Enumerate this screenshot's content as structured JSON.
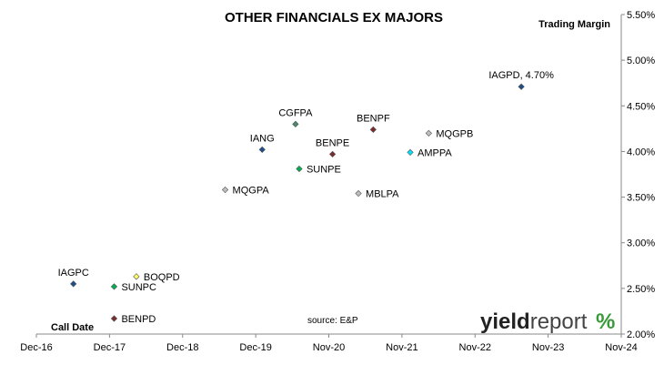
{
  "chart_data": {
    "type": "scatter",
    "title": "OTHER FINANCIALS EX MAJORS",
    "ylabel": "Trading  Margin",
    "xlabel": "Call Date",
    "source": "source: E&P",
    "logo": {
      "part1": "yield",
      "part2": "report",
      "symbol": "%"
    },
    "x_ticks": [
      "Dec-16",
      "Dec-17",
      "Dec-18",
      "Dec-19",
      "Nov-20",
      "Nov-21",
      "Nov-22",
      "Nov-23",
      "Nov-24"
    ],
    "y_ticks": [
      "2.00%",
      "2.50%",
      "3.00%",
      "3.50%",
      "4.00%",
      "4.50%",
      "5.00%",
      "5.50%"
    ],
    "ylim": [
      2.0,
      5.5
    ],
    "xlim_years": [
      2016.95,
      2024.85
    ],
    "grid": false,
    "points": [
      {
        "label": "IAGPC",
        "x": 2017.45,
        "y": 2.55,
        "color": "#1f4e8c",
        "label_pos": "above"
      },
      {
        "label": "SUNPC",
        "x": 2018.0,
        "y": 2.52,
        "color": "#00b050",
        "label_pos": "right"
      },
      {
        "label": "BOQPD",
        "x": 2018.3,
        "y": 2.63,
        "color": "#ffff66",
        "label_pos": "right"
      },
      {
        "label": "BENPD",
        "x": 2018.0,
        "y": 2.17,
        "color": "#7b2c2c",
        "label_pos": "right"
      },
      {
        "label": "MQGPA",
        "x": 2019.5,
        "y": 3.58,
        "color": "#bfbfbf",
        "label_pos": "right"
      },
      {
        "label": "IANG",
        "x": 2020.0,
        "y": 4.02,
        "color": "#1f4e8c",
        "label_pos": "above"
      },
      {
        "label": "CGFPA",
        "x": 2020.45,
        "y": 4.3,
        "color": "#4a8a6a",
        "label_pos": "above"
      },
      {
        "label": "SUNPE",
        "x": 2020.5,
        "y": 3.81,
        "color": "#00b050",
        "label_pos": "right"
      },
      {
        "label": "BENPE",
        "x": 2020.95,
        "y": 3.97,
        "color": "#7b2c2c",
        "label_pos": "above"
      },
      {
        "label": "BENPF",
        "x": 2021.5,
        "y": 4.24,
        "color": "#7b2c2c",
        "label_pos": "above"
      },
      {
        "label": "MBLPA",
        "x": 2021.3,
        "y": 3.54,
        "color": "#bfbfbf",
        "label_pos": "right"
      },
      {
        "label": "AMPPA",
        "x": 2022.0,
        "y": 3.99,
        "color": "#00e5ff",
        "label_pos": "right"
      },
      {
        "label": "MQGPB",
        "x": 2022.25,
        "y": 4.2,
        "color": "#bfbfbf",
        "label_pos": "right"
      },
      {
        "label": "IAGPD, 4.70%",
        "x": 2023.5,
        "y": 4.71,
        "color": "#1f4e8c",
        "label_pos": "above"
      }
    ]
  }
}
